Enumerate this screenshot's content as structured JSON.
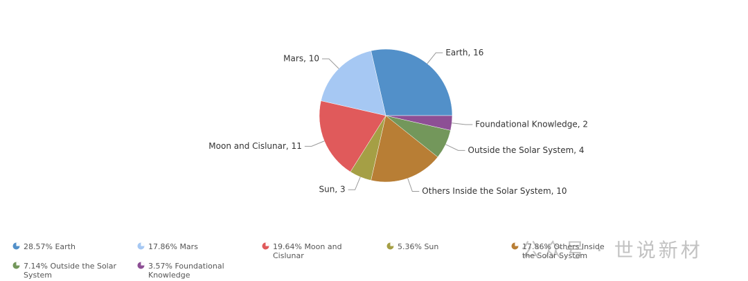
{
  "chart_data": {
    "type": "pie",
    "categories": [
      "Earth",
      "Mars",
      "Moon and Cislunar",
      "Sun",
      "Others Inside the Solar System",
      "Outside the Solar System",
      "Foundational Knowledge"
    ],
    "values": [
      16,
      10,
      11,
      3,
      10,
      4,
      2
    ],
    "value_labels": [
      "Earth, 16",
      "Mars, 10",
      "Moon and Cislunar, 11",
      "Sun, 3",
      "Others Inside the Solar System, 10",
      "Outside the Solar System, 4",
      "Foundational Knowledge, 2"
    ],
    "legend_labels": [
      "28.57% Earth",
      "17.86% Mars",
      "19.64% Moon and Cislunar",
      "5.36% Sun",
      "17.86% Others Inside the Solar System",
      "7.14% Outside the Solar System",
      "3.57% Foundational Knowledge"
    ],
    "colors": [
      "#5290c9",
      "#a6c8f3",
      "#e05a5b",
      "#a59f45",
      "#b87e35",
      "#73975b",
      "#8d4f95"
    ],
    "legend": "bottom",
    "watermark": "公众号 · 世说新材"
  }
}
